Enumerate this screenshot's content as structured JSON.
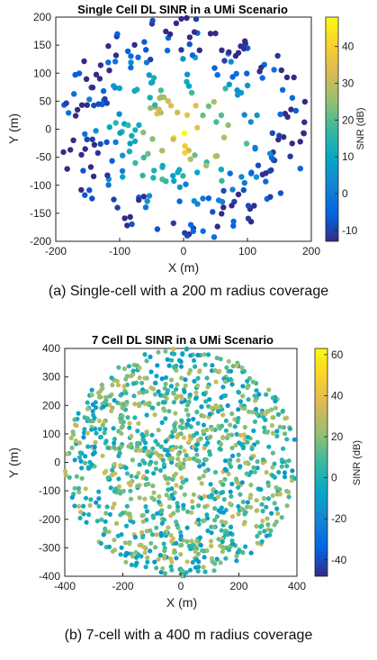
{
  "chart_data": [
    {
      "type": "scatter",
      "title": "Single Cell DL SINR in a UMi Scenario",
      "xlabel": "X (m)",
      "ylabel": "Y (m)",
      "xlim": [
        -200,
        200
      ],
      "ylim": [
        -200,
        200
      ],
      "xticks": [
        -200,
        -100,
        0,
        100,
        200
      ],
      "yticks": [
        -200,
        -150,
        -100,
        -50,
        0,
        50,
        100,
        150,
        200
      ],
      "colorbar": {
        "label": "SNR (dB)",
        "range": [
          -13,
          48
        ],
        "ticks": [
          -10,
          0,
          10,
          20,
          30,
          40
        ]
      },
      "grid": false,
      "points": {
        "count": 300,
        "region": "disk",
        "radius": 200,
        "seed": 7
      },
      "caption": "(a) Single-cell with a 200 m radius coverage"
    },
    {
      "type": "scatter",
      "title": "7 Cell DL SINR in a UMi Scenario",
      "xlabel": "X (m)",
      "ylabel": "Y (m)",
      "xlim": [
        -400,
        400
      ],
      "ylim": [
        -400,
        400
      ],
      "xticks": [
        -400,
        -200,
        0,
        200,
        400
      ],
      "yticks": [
        -400,
        -300,
        -200,
        -100,
        0,
        100,
        200,
        300,
        400
      ],
      "colorbar": {
        "label": "SINR (dB)",
        "range": [
          -48,
          63
        ],
        "ticks": [
          -40,
          -20,
          0,
          20,
          40,
          60
        ]
      },
      "grid": false,
      "points": {
        "count": 1100,
        "region": "disk",
        "radius": 400,
        "seed": 21
      },
      "caption": "(b) 7-cell with a 400 m radius coverage"
    }
  ]
}
